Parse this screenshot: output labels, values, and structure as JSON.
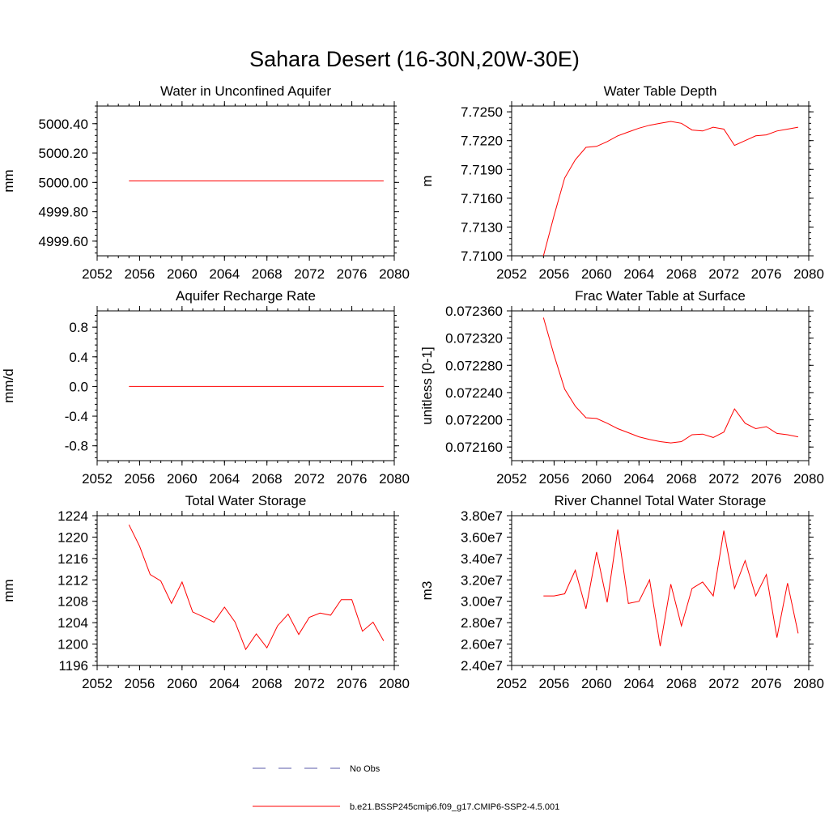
{
  "figure": {
    "title": "Sahara Desert (16-30N,20W-30E)"
  },
  "colors": {
    "model_line": "#ff0000",
    "obs_line": "#5a5aaa",
    "axis": "#000000"
  },
  "legend": {
    "placement": "bottom-center",
    "entries": [
      {
        "label": "No Obs",
        "style": "dashed",
        "color": "#5a5aaa"
      },
      {
        "label": "b.e21.BSSP245cmip6.f09_g17.CMIP6-SSP2-4.5.001",
        "style": "solid",
        "color": "#ff0000"
      }
    ]
  },
  "chart_data": [
    {
      "type": "line",
      "title": "Water in Unconfined Aquifer",
      "xlabel": "",
      "ylabel": "mm",
      "xlim": [
        2052,
        2080
      ],
      "ylim": [
        4999.5,
        5000.52
      ],
      "xticks": [
        "2052",
        "2056",
        "2060",
        "2064",
        "2068",
        "2072",
        "2076",
        "2080"
      ],
      "yticks": [
        4999.6,
        4999.8,
        5000.0,
        5000.2,
        5000.4
      ],
      "ytick_labels": [
        "4999.60",
        "4999.80",
        "5000.00",
        "5000.20",
        "5000.40"
      ],
      "grid": false,
      "x": [
        2055,
        2056,
        2057,
        2058,
        2059,
        2060,
        2061,
        2062,
        2063,
        2064,
        2065,
        2066,
        2067,
        2068,
        2069,
        2070,
        2071,
        2072,
        2073,
        2074,
        2075,
        2076,
        2077,
        2078,
        2079
      ],
      "series": [
        {
          "name": "b.e21.BSSP245cmip6.f09_g17.CMIP6-SSP2-4.5.001",
          "values": [
            5000.01,
            5000.01,
            5000.01,
            5000.01,
            5000.01,
            5000.01,
            5000.01,
            5000.01,
            5000.01,
            5000.01,
            5000.01,
            5000.01,
            5000.01,
            5000.01,
            5000.01,
            5000.01,
            5000.01,
            5000.01,
            5000.01,
            5000.01,
            5000.01,
            5000.01,
            5000.01,
            5000.01,
            5000.01
          ]
        }
      ]
    },
    {
      "type": "line",
      "title": "Water Table Depth",
      "xlabel": "",
      "ylabel": "m",
      "xlim": [
        2052,
        2080
      ],
      "ylim": [
        7.71,
        7.7256
      ],
      "xticks": [
        "2052",
        "2056",
        "2060",
        "2064",
        "2068",
        "2072",
        "2076",
        "2080"
      ],
      "yticks": [
        7.71,
        7.713,
        7.716,
        7.719,
        7.722,
        7.725
      ],
      "ytick_labels": [
        "7.7100",
        "7.7130",
        "7.7160",
        "7.7190",
        "7.7220",
        "7.7250"
      ],
      "grid": false,
      "x": [
        2055,
        2056,
        2057,
        2058,
        2059,
        2060,
        2061,
        2062,
        2063,
        2064,
        2065,
        2066,
        2067,
        2068,
        2069,
        2070,
        2071,
        2072,
        2073,
        2074,
        2075,
        2076,
        2077,
        2078,
        2079
      ],
      "series": [
        {
          "name": "b.e21.BSSP245cmip6.f09_g17.CMIP6-SSP2-4.5.001",
          "values": [
            7.71,
            7.7142,
            7.7181,
            7.72,
            7.7213,
            7.7214,
            7.7219,
            7.7225,
            7.7229,
            7.7233,
            7.7236,
            7.7238,
            7.724,
            7.7238,
            7.7231,
            7.723,
            7.7234,
            7.7232,
            7.7215,
            7.722,
            7.7225,
            7.7226,
            7.723,
            7.7232,
            7.7234
          ]
        }
      ]
    },
    {
      "type": "line",
      "title": "Aquifer Recharge Rate",
      "xlabel": "",
      "ylabel": "mm/d",
      "xlim": [
        2052,
        2080
      ],
      "ylim": [
        -1.0,
        1.02
      ],
      "xticks": [
        "2052",
        "2056",
        "2060",
        "2064",
        "2068",
        "2072",
        "2076",
        "2080"
      ],
      "yticks": [
        -0.8,
        -0.4,
        0.0,
        0.4,
        0.8
      ],
      "ytick_labels": [
        "-0.8",
        "-0.4",
        "0.0",
        "0.4",
        "0.8"
      ],
      "grid": false,
      "x": [
        2055,
        2056,
        2057,
        2058,
        2059,
        2060,
        2061,
        2062,
        2063,
        2064,
        2065,
        2066,
        2067,
        2068,
        2069,
        2070,
        2071,
        2072,
        2073,
        2074,
        2075,
        2076,
        2077,
        2078,
        2079
      ],
      "series": [
        {
          "name": "b.e21.BSSP245cmip6.f09_g17.CMIP6-SSP2-4.5.001",
          "values": [
            0,
            0,
            0,
            0,
            0,
            0,
            0,
            0,
            0,
            0,
            0,
            0,
            0,
            0,
            0,
            0,
            0,
            0,
            0,
            0,
            0,
            0,
            0,
            0,
            0
          ]
        }
      ]
    },
    {
      "type": "line",
      "title": "Frac Water Table at Surface",
      "xlabel": "",
      "ylabel": "unitless [0-1]",
      "xlim": [
        2052,
        2080
      ],
      "ylim": [
        0.07214,
        0.07236
      ],
      "xticks": [
        "2052",
        "2056",
        "2060",
        "2064",
        "2068",
        "2072",
        "2076",
        "2080"
      ],
      "yticks": [
        0.07216,
        0.0722,
        0.07224,
        0.07228,
        0.07232,
        0.07236
      ],
      "ytick_labels": [
        "0.072160",
        "0.072200",
        "0.072240",
        "0.072280",
        "0.072320",
        "0.072360"
      ],
      "grid": false,
      "x": [
        2055,
        2056,
        2057,
        2058,
        2059,
        2060,
        2061,
        2062,
        2063,
        2064,
        2065,
        2066,
        2067,
        2068,
        2069,
        2070,
        2071,
        2072,
        2073,
        2074,
        2075,
        2076,
        2077,
        2078,
        2079
      ],
      "series": [
        {
          "name": "b.e21.BSSP245cmip6.f09_g17.CMIP6-SSP2-4.5.001",
          "values": [
            0.07235,
            0.072295,
            0.072245,
            0.07222,
            0.072203,
            0.072202,
            0.072195,
            0.072187,
            0.072181,
            0.072175,
            0.072171,
            0.072168,
            0.072166,
            0.072168,
            0.072178,
            0.072179,
            0.072174,
            0.072182,
            0.072216,
            0.072195,
            0.072187,
            0.07219,
            0.07218,
            0.072178,
            0.072175
          ]
        }
      ]
    },
    {
      "type": "line",
      "title": "Total Water Storage",
      "xlabel": "",
      "ylabel": "mm",
      "xlim": [
        2052,
        2080
      ],
      "ylim": [
        1196,
        1224
      ],
      "xticks": [
        "2052",
        "2056",
        "2060",
        "2064",
        "2068",
        "2072",
        "2076",
        "2080"
      ],
      "yticks": [
        1196,
        1200,
        1204,
        1208,
        1212,
        1216,
        1220,
        1224
      ],
      "ytick_labels": [
        "1196",
        "1200",
        "1204",
        "1208",
        "1212",
        "1216",
        "1220",
        "1224"
      ],
      "grid": false,
      "x": [
        2055,
        2056,
        2057,
        2058,
        2059,
        2060,
        2061,
        2062,
        2063,
        2064,
        2065,
        2066,
        2067,
        2068,
        2069,
        2070,
        2071,
        2072,
        2073,
        2074,
        2075,
        2076,
        2077,
        2078,
        2079
      ],
      "series": [
        {
          "name": "b.e21.BSSP245cmip6.f09_g17.CMIP6-SSP2-4.5.001",
          "values": [
            1222.3,
            1218.3,
            1213.0,
            1211.8,
            1207.6,
            1211.6,
            1206.0,
            1205.1,
            1204.1,
            1206.9,
            1204.1,
            1199.0,
            1201.9,
            1199.3,
            1203.4,
            1205.6,
            1201.8,
            1205.0,
            1205.8,
            1205.4,
            1208.3,
            1208.3,
            1202.4,
            1204.1,
            1200.6
          ]
        }
      ]
    },
    {
      "type": "line",
      "title": "River Channel Total Water Storage",
      "xlabel": "",
      "ylabel": "m3",
      "xlim": [
        2052,
        2080
      ],
      "ylim": [
        24000000,
        38000000
      ],
      "xticks": [
        "2052",
        "2056",
        "2060",
        "2064",
        "2068",
        "2072",
        "2076",
        "2080"
      ],
      "yticks": [
        24000000,
        26000000,
        28000000,
        30000000,
        32000000,
        34000000,
        36000000,
        38000000
      ],
      "ytick_labels": [
        "2.40e7",
        "2.60e7",
        "2.80e7",
        "3.00e7",
        "3.20e7",
        "3.40e7",
        "3.60e7",
        "3.80e7"
      ],
      "grid": false,
      "x": [
        2055,
        2056,
        2057,
        2058,
        2059,
        2060,
        2061,
        2062,
        2063,
        2064,
        2065,
        2066,
        2067,
        2068,
        2069,
        2070,
        2071,
        2072,
        2073,
        2074,
        2075,
        2076,
        2077,
        2078,
        2079
      ],
      "series": [
        {
          "name": "b.e21.BSSP245cmip6.f09_g17.CMIP6-SSP2-4.5.001",
          "values": [
            30500000,
            30500000,
            30700000,
            32900000,
            29300000,
            34600000,
            29900000,
            36700000,
            29800000,
            30000000,
            32000000,
            25800000,
            31600000,
            27700000,
            31200000,
            31800000,
            30500000,
            36600000,
            31200000,
            33800000,
            30500000,
            32500000,
            26600000,
            31700000,
            27000000
          ]
        }
      ]
    }
  ]
}
